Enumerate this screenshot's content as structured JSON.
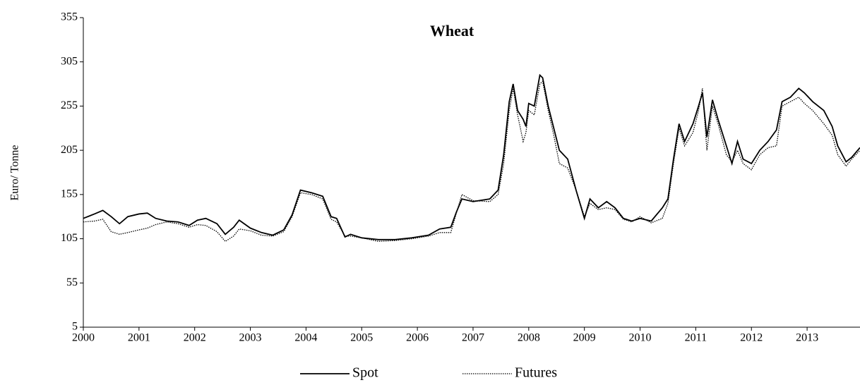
{
  "chart_data": {
    "type": "line",
    "title": "Wheat",
    "y_label": "Euro/ Tonne",
    "x": [
      2000.0,
      2000.2,
      2000.35,
      2000.5,
      2000.65,
      2000.8,
      2001.0,
      2001.15,
      2001.3,
      2001.5,
      2001.7,
      2001.9,
      2002.05,
      2002.2,
      2002.4,
      2002.55,
      2002.7,
      2002.8,
      2003.0,
      2003.2,
      2003.4,
      2003.6,
      2003.75,
      2003.9,
      2004.1,
      2004.3,
      2004.45,
      2004.55,
      2004.7,
      2004.8,
      2005.0,
      2005.3,
      2005.6,
      2005.9,
      2006.2,
      2006.4,
      2006.6,
      2006.7,
      2006.8,
      2007.0,
      2007.3,
      2007.45,
      2007.55,
      2007.65,
      2007.72,
      2007.8,
      2007.9,
      2007.95,
      2008.0,
      2008.1,
      2008.2,
      2008.25,
      2008.35,
      2008.45,
      2008.55,
      2008.7,
      2008.85,
      2009.0,
      2009.1,
      2009.25,
      2009.4,
      2009.55,
      2009.7,
      2009.85,
      2010.0,
      2010.2,
      2010.4,
      2010.5,
      2010.6,
      2010.7,
      2010.8,
      2010.95,
      2011.05,
      2011.12,
      2011.2,
      2011.3,
      2011.4,
      2011.55,
      2011.65,
      2011.75,
      2011.85,
      2012.0,
      2012.15,
      2012.3,
      2012.45,
      2012.55,
      2012.7,
      2012.85,
      2012.95,
      2013.1,
      2013.3,
      2013.45,
      2013.55,
      2013.7,
      2013.8,
      2013.95
    ],
    "series": [
      {
        "name": "Spot",
        "color": "#000000",
        "style": "solid",
        "values": [
          128,
          133,
          137,
          130,
          122,
          130,
          133,
          134,
          128,
          125,
          124,
          120,
          126,
          128,
          122,
          110,
          118,
          126,
          117,
          112,
          109,
          115,
          132,
          160,
          157,
          153,
          130,
          128,
          107,
          110,
          106,
          104,
          104,
          106,
          109,
          116,
          118,
          135,
          150,
          147,
          150,
          160,
          200,
          260,
          280,
          250,
          240,
          232,
          258,
          255,
          290,
          287,
          255,
          230,
          205,
          195,
          160,
          128,
          150,
          140,
          147,
          140,
          128,
          125,
          128,
          125,
          140,
          150,
          195,
          235,
          215,
          235,
          255,
          270,
          220,
          262,
          240,
          210,
          190,
          215,
          195,
          190,
          205,
          215,
          228,
          260,
          265,
          275,
          270,
          260,
          250,
          232,
          210,
          192,
          197,
          208
        ]
      },
      {
        "name": "Futures",
        "color": "#000000",
        "style": "dotted",
        "values": [
          124,
          125,
          127,
          113,
          110,
          112,
          115,
          117,
          121,
          124,
          122,
          118,
          121,
          120,
          113,
          102,
          108,
          116,
          114,
          109,
          108,
          113,
          130,
          157,
          155,
          150,
          127,
          124,
          108,
          108,
          106,
          102,
          103,
          105,
          108,
          112,
          112,
          134,
          155,
          148,
          147,
          155,
          190,
          250,
          275,
          245,
          215,
          225,
          250,
          245,
          280,
          283,
          250,
          222,
          190,
          185,
          160,
          130,
          145,
          138,
          140,
          138,
          127,
          124,
          130,
          123,
          128,
          145,
          190,
          230,
          210,
          225,
          250,
          275,
          205,
          255,
          235,
          200,
          192,
          205,
          190,
          183,
          200,
          208,
          210,
          255,
          260,
          265,
          258,
          250,
          235,
          222,
          200,
          187,
          195,
          205
        ]
      }
    ],
    "xlim": [
      2000,
      2013.95
    ],
    "xticks": [
      2000,
      2001,
      2002,
      2003,
      2004,
      2005,
      2006,
      2007,
      2008,
      2009,
      2010,
      2011,
      2012,
      2013
    ],
    "ylim": [
      5,
      355
    ],
    "yticks": [
      5,
      55,
      105,
      155,
      205,
      255,
      305,
      355
    ],
    "grid": false,
    "legend": "bottom"
  }
}
